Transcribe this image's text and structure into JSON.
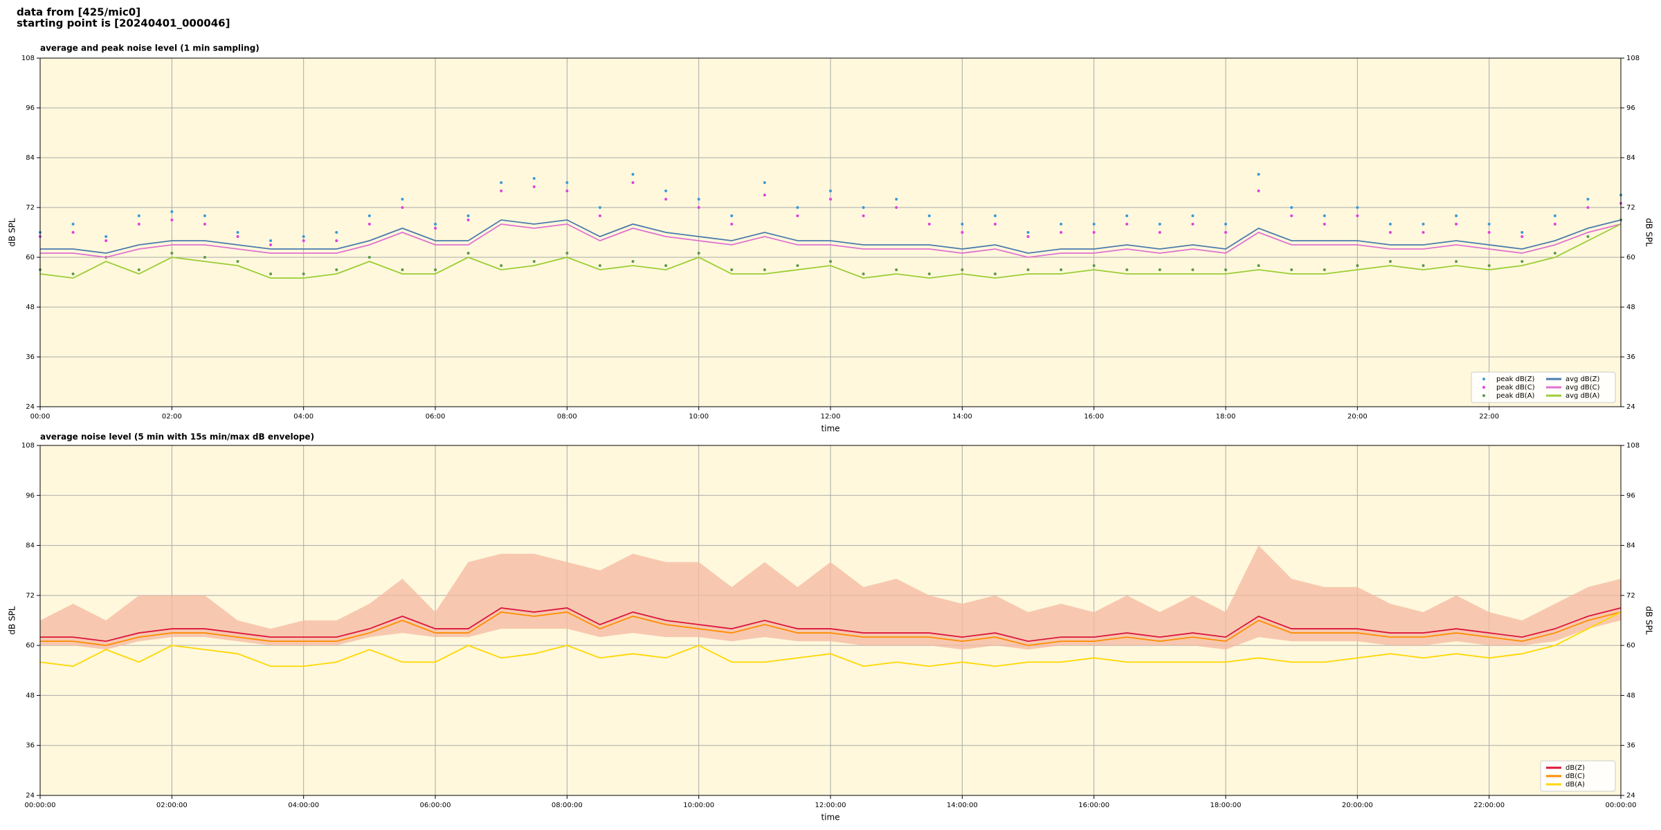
{
  "header": {
    "source": "data from [425/mic0]",
    "start": "starting point is [20240401_000046]"
  },
  "chart_data": [
    {
      "type": "line",
      "title": "average and peak noise level (1 min sampling)",
      "xlabel": "time",
      "ylabel": "dB SPL",
      "y2label": "dB SPL",
      "background": "#fff8dc",
      "grid": true,
      "legend": "lower right",
      "x": [
        0,
        30,
        60,
        90,
        120,
        150,
        180,
        210,
        240,
        270,
        300,
        330,
        360,
        390,
        420,
        450,
        480,
        510,
        540,
        570,
        600,
        630,
        660,
        690,
        720,
        750,
        780,
        810,
        840,
        870,
        900,
        930,
        960,
        990,
        1020,
        1050,
        1080,
        1110,
        1140,
        1170,
        1200,
        1230,
        1260,
        1290,
        1320,
        1350,
        1380,
        1410,
        1440
      ],
      "xlim": [
        0,
        1440
      ],
      "xticks": [
        {
          "value": 0,
          "label": "00:00"
        },
        {
          "value": 120,
          "label": "02:00"
        },
        {
          "value": 240,
          "label": "04:00"
        },
        {
          "value": 360,
          "label": "06:00"
        },
        {
          "value": 480,
          "label": "08:00"
        },
        {
          "value": 600,
          "label": "10:00"
        },
        {
          "value": 720,
          "label": "12:00"
        },
        {
          "value": 840,
          "label": "14:00"
        },
        {
          "value": 960,
          "label": "16:00"
        },
        {
          "value": 1080,
          "label": "18:00"
        },
        {
          "value": 1200,
          "label": "20:00"
        },
        {
          "value": 1320,
          "label": "22:00"
        }
      ],
      "ylim": [
        24,
        108
      ],
      "yticks": [
        24,
        36,
        48,
        60,
        72,
        84,
        96,
        108
      ],
      "y2lim": [
        24,
        108
      ],
      "y2ticks": [
        24,
        36,
        48,
        60,
        72,
        84,
        96,
        108
      ],
      "series": [
        {
          "name": "peak dB(Z)",
          "kind": "scatter",
          "color": "#3a9ad9",
          "values": [
            66,
            68,
            65,
            70,
            71,
            70,
            66,
            64,
            65,
            66,
            70,
            74,
            68,
            70,
            78,
            79,
            78,
            72,
            80,
            76,
            74,
            70,
            78,
            72,
            76,
            72,
            74,
            70,
            68,
            70,
            66,
            68,
            68,
            70,
            68,
            70,
            68,
            80,
            72,
            70,
            72,
            68,
            68,
            70,
            68,
            66,
            70,
            74,
            75
          ]
        },
        {
          "name": "peak dB(C)",
          "kind": "scatter",
          "color": "#e040e0",
          "values": [
            65,
            66,
            64,
            68,
            69,
            68,
            65,
            63,
            64,
            64,
            68,
            72,
            67,
            69,
            76,
            77,
            76,
            70,
            78,
            74,
            72,
            68,
            75,
            70,
            74,
            70,
            72,
            68,
            66,
            68,
            65,
            66,
            66,
            68,
            66,
            68,
            66,
            76,
            70,
            68,
            70,
            66,
            66,
            68,
            66,
            65,
            68,
            72,
            73
          ]
        },
        {
          "name": "peak dB(A)",
          "kind": "scatter",
          "color": "#5a9a4a",
          "values": [
            57,
            56,
            60,
            57,
            61,
            60,
            59,
            56,
            56,
            57,
            60,
            57,
            57,
            61,
            58,
            59,
            61,
            58,
            59,
            58,
            61,
            57,
            57,
            58,
            59,
            56,
            57,
            56,
            57,
            56,
            57,
            57,
            58,
            57,
            57,
            57,
            57,
            58,
            57,
            57,
            58,
            59,
            58,
            59,
            58,
            59,
            61,
            65,
            69
          ]
        },
        {
          "name": "avg dB(Z)",
          "kind": "line",
          "color": "#4a7aad",
          "values": [
            62,
            62,
            61,
            63,
            64,
            64,
            63,
            62,
            62,
            62,
            64,
            67,
            64,
            64,
            69,
            68,
            69,
            65,
            68,
            66,
            65,
            64,
            66,
            64,
            64,
            63,
            63,
            63,
            62,
            63,
            61,
            62,
            62,
            63,
            62,
            63,
            62,
            67,
            64,
            64,
            64,
            63,
            63,
            64,
            63,
            62,
            64,
            67,
            69
          ]
        },
        {
          "name": "avg dB(C)",
          "kind": "line",
          "color": "#e070d0",
          "values": [
            61,
            61,
            60,
            62,
            63,
            63,
            62,
            61,
            61,
            61,
            63,
            66,
            63,
            63,
            68,
            67,
            68,
            64,
            67,
            65,
            64,
            63,
            65,
            63,
            63,
            62,
            62,
            62,
            61,
            62,
            60,
            61,
            61,
            62,
            61,
            62,
            61,
            66,
            63,
            63,
            63,
            62,
            62,
            63,
            62,
            61,
            63,
            66,
            68
          ]
        },
        {
          "name": "avg dB(A)",
          "kind": "line",
          "color": "#9acd32",
          "values": [
            56,
            55,
            59,
            56,
            60,
            59,
            58,
            55,
            55,
            56,
            59,
            56,
            56,
            60,
            57,
            58,
            60,
            57,
            58,
            57,
            60,
            56,
            56,
            57,
            58,
            55,
            56,
            55,
            56,
            55,
            56,
            56,
            57,
            56,
            56,
            56,
            56,
            57,
            56,
            56,
            57,
            58,
            57,
            58,
            57,
            58,
            60,
            64,
            68
          ]
        }
      ]
    },
    {
      "type": "line",
      "title": "average noise level (5 min with 15s min/max dB envelope)",
      "xlabel": "time",
      "ylabel": "dB SPL",
      "y2label": "dB SPL",
      "background": "#fff8dc",
      "grid": true,
      "legend": "lower right",
      "x": [
        0,
        30,
        60,
        90,
        120,
        150,
        180,
        210,
        240,
        270,
        300,
        330,
        360,
        390,
        420,
        450,
        480,
        510,
        540,
        570,
        600,
        630,
        660,
        690,
        720,
        750,
        780,
        810,
        840,
        870,
        900,
        930,
        960,
        990,
        1020,
        1050,
        1080,
        1110,
        1140,
        1170,
        1200,
        1230,
        1260,
        1290,
        1320,
        1350,
        1380,
        1410,
        1440
      ],
      "xlim": [
        0,
        1440
      ],
      "xticks": [
        {
          "value": 0,
          "label": "00:00:00"
        },
        {
          "value": 120,
          "label": "02:00:00"
        },
        {
          "value": 240,
          "label": "04:00:00"
        },
        {
          "value": 360,
          "label": "06:00:00"
        },
        {
          "value": 480,
          "label": "08:00:00"
        },
        {
          "value": 600,
          "label": "10:00:00"
        },
        {
          "value": 720,
          "label": "12:00:00"
        },
        {
          "value": 840,
          "label": "14:00:00"
        },
        {
          "value": 960,
          "label": "16:00:00"
        },
        {
          "value": 1080,
          "label": "18:00:00"
        },
        {
          "value": 1200,
          "label": "20:00:00"
        },
        {
          "value": 1320,
          "label": "22:00:00"
        },
        {
          "value": 1440,
          "label": "00:00:00"
        }
      ],
      "ylim": [
        24,
        108
      ],
      "yticks": [
        24,
        36,
        48,
        60,
        72,
        84,
        96,
        108
      ],
      "y2lim": [
        24,
        108
      ],
      "y2ticks": [
        24,
        36,
        48,
        60,
        72,
        84,
        96,
        108
      ],
      "envelope": {
        "color": "#f4b8a0",
        "upper": [
          66,
          70,
          66,
          72,
          72,
          72,
          66,
          64,
          66,
          66,
          70,
          76,
          68,
          80,
          82,
          82,
          80,
          78,
          82,
          80,
          80,
          74,
          80,
          74,
          80,
          74,
          76,
          72,
          70,
          72,
          68,
          70,
          68,
          72,
          68,
          72,
          68,
          84,
          76,
          74,
          74,
          70,
          68,
          72,
          68,
          66,
          70,
          74,
          76
        ],
        "lower": [
          60,
          60,
          59,
          61,
          62,
          62,
          61,
          60,
          60,
          60,
          62,
          63,
          62,
          62,
          64,
          64,
          64,
          62,
          63,
          62,
          62,
          61,
          62,
          61,
          61,
          60,
          60,
          60,
          59,
          60,
          59,
          60,
          60,
          60,
          60,
          60,
          59,
          62,
          61,
          61,
          61,
          60,
          60,
          61,
          60,
          60,
          61,
          64,
          66
        ]
      },
      "series": [
        {
          "name": "dB(Z)",
          "kind": "line",
          "color": "#dc143c",
          "values": [
            62,
            62,
            61,
            63,
            64,
            64,
            63,
            62,
            62,
            62,
            64,
            67,
            64,
            64,
            69,
            68,
            69,
            65,
            68,
            66,
            65,
            64,
            66,
            64,
            64,
            63,
            63,
            63,
            62,
            63,
            61,
            62,
            62,
            63,
            62,
            63,
            62,
            67,
            64,
            64,
            64,
            63,
            63,
            64,
            63,
            62,
            64,
            67,
            69
          ]
        },
        {
          "name": "dB(C)",
          "kind": "line",
          "color": "#ff8c00",
          "values": [
            61,
            61,
            60,
            62,
            63,
            63,
            62,
            61,
            61,
            61,
            63,
            66,
            63,
            63,
            68,
            67,
            68,
            64,
            67,
            65,
            64,
            63,
            65,
            63,
            63,
            62,
            62,
            62,
            61,
            62,
            60,
            61,
            61,
            62,
            61,
            62,
            61,
            66,
            63,
            63,
            63,
            62,
            62,
            63,
            62,
            61,
            63,
            66,
            68
          ]
        },
        {
          "name": "dB(A)",
          "kind": "line",
          "color": "#ffd700",
          "values": [
            56,
            55,
            59,
            56,
            60,
            59,
            58,
            55,
            55,
            56,
            59,
            56,
            56,
            60,
            57,
            58,
            60,
            57,
            58,
            57,
            60,
            56,
            56,
            57,
            58,
            55,
            56,
            55,
            56,
            55,
            56,
            56,
            57,
            56,
            56,
            56,
            56,
            57,
            56,
            56,
            57,
            58,
            57,
            58,
            57,
            58,
            60,
            64,
            68
          ]
        }
      ]
    }
  ]
}
